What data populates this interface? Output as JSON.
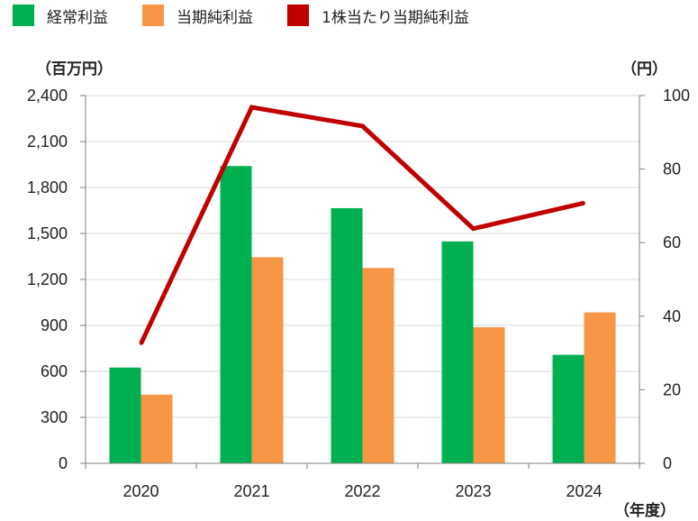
{
  "chart_data": {
    "type": "bar",
    "categories": [
      "2020",
      "2021",
      "2022",
      "2023",
      "2024"
    ],
    "series": [
      {
        "name": "経常利益",
        "kind": "bar",
        "axis": "left",
        "color": "#00b050",
        "values": [
          625,
          1940,
          1665,
          1448,
          708
        ]
      },
      {
        "name": "当期純利益",
        "kind": "bar",
        "axis": "left",
        "color": "#f79646",
        "values": [
          448,
          1345,
          1275,
          888,
          985
        ]
      },
      {
        "name": "1株当たり当期純利益",
        "kind": "line",
        "axis": "right",
        "color": "#c00000",
        "values": [
          32.5,
          96.8,
          91.7,
          63.8,
          70.8
        ]
      }
    ],
    "y_left": {
      "unit": "（百万円）",
      "ylim": [
        0,
        2400
      ],
      "ticks": [
        0,
        300,
        600,
        900,
        1200,
        1500,
        1800,
        2100,
        2400
      ],
      "tick_labels": [
        "0",
        "300",
        "600",
        "900",
        "1,200",
        "1,500",
        "1,800",
        "2,100",
        "2,400"
      ]
    },
    "y_right": {
      "unit": "（円）",
      "ylim": [
        0,
        100
      ],
      "ticks": [
        0,
        20,
        40,
        60,
        80,
        100
      ],
      "tick_labels": [
        "0",
        "20",
        "40",
        "60",
        "80",
        "100"
      ]
    },
    "x_unit": "（年度）",
    "grid": true,
    "legend_position": "top-left"
  }
}
